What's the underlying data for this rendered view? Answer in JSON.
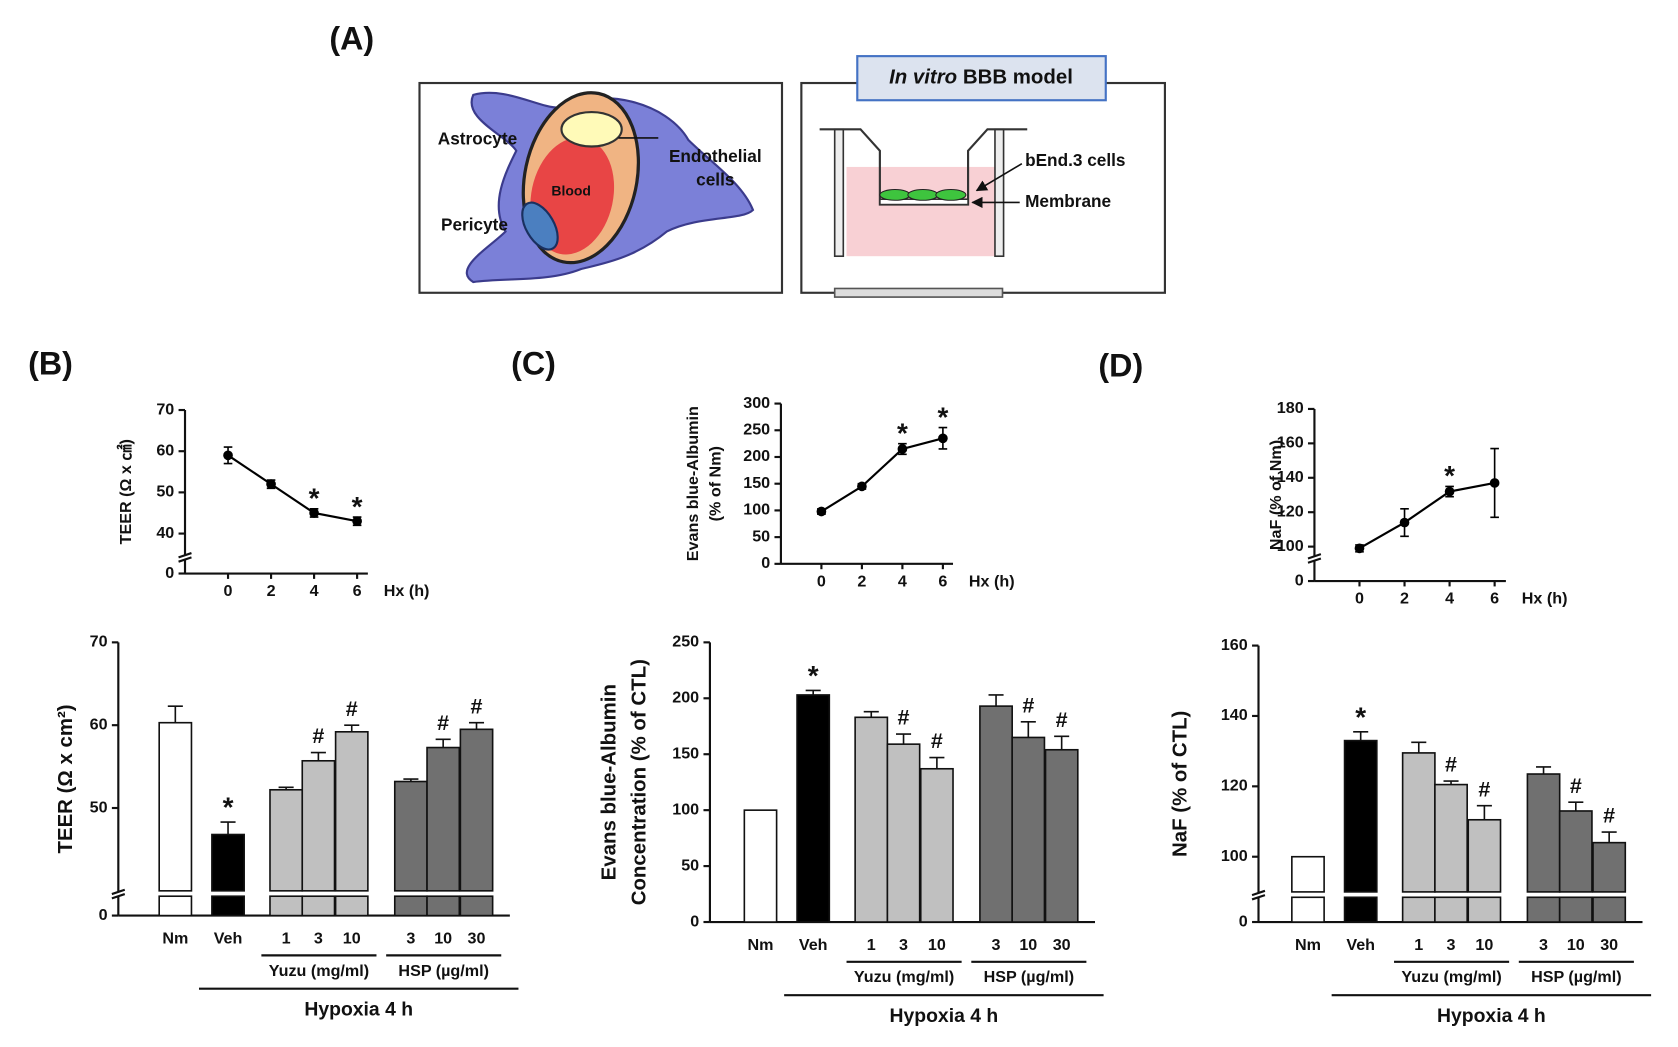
{
  "panel_labels": [
    "(A)",
    "(B)",
    "(C)",
    "(D)"
  ],
  "diagram": {
    "title_italic": "In vitro",
    "title_rest": "BBB model",
    "left_labels": {
      "astrocyte": "Astrocyte",
      "endothelial": [
        "Endothelial",
        "cells"
      ],
      "blood": "Blood",
      "pericyte": "Pericyte"
    },
    "right_labels": {
      "cells": "bEnd.3 cells",
      "membrane": "Membrane"
    }
  },
  "chart_data": [
    {
      "type": "line",
      "ylabel": [
        "TEER (Ω x ㎠)"
      ],
      "xlabel": "Hx (h)",
      "x": [
        0,
        2,
        4,
        6
      ],
      "values": [
        59,
        52,
        45,
        43
      ],
      "errors": [
        2,
        1,
        1,
        1
      ],
      "annotations": [
        null,
        null,
        "*",
        "*"
      ],
      "color": "#000000",
      "xlim": [
        -2,
        6.5
      ],
      "xticks": [
        0,
        2,
        4,
        6
      ],
      "ylim": [
        0,
        70
      ],
      "yticks": [
        0,
        40,
        50,
        60,
        70
      ],
      "axis_break": [
        0,
        35
      ]
    },
    {
      "type": "bar",
      "ylabel": [
        "TEER (Ω x cm²)"
      ],
      "categories": [
        "Nm",
        "Veh",
        "1",
        "3",
        "10",
        "3",
        "10",
        "30"
      ],
      "values": [
        60.3,
        46.8,
        52.2,
        55.7,
        59.2,
        53.2,
        57.3,
        59.5
      ],
      "errors": [
        2,
        1.5,
        0.3,
        1,
        0.8,
        0.3,
        1,
        0.8
      ],
      "annotations": [
        null,
        "*",
        null,
        "#",
        "#",
        null,
        "#",
        "#"
      ],
      "colors": [
        "#ffffff",
        "#000000",
        "#c0c0c0",
        "#c0c0c0",
        "#c0c0c0",
        "#707070",
        "#707070",
        "#707070"
      ],
      "groups": [
        {
          "label": "Yuzu (mg/ml)",
          "members": [
            2,
            3,
            4
          ]
        },
        {
          "label": "HSP (µg/ml)",
          "members": [
            5,
            6,
            7
          ]
        }
      ],
      "bracket_label": "Hypoxia 4 h",
      "ylim": [
        0,
        70
      ],
      "yticks": [
        0,
        50,
        60,
        70
      ],
      "axis_break": [
        0,
        40
      ]
    },
    {
      "type": "line",
      "ylabel": [
        "Evans blue-Albumin",
        "(% of Nm)"
      ],
      "xlabel": "Hx (h)",
      "x": [
        0,
        2,
        4,
        6
      ],
      "values": [
        98,
        145,
        215,
        235
      ],
      "errors": [
        5,
        5,
        10,
        20
      ],
      "annotations": [
        null,
        null,
        "*",
        "*"
      ],
      "color": "#000000",
      "xlim": [
        -2,
        6.5
      ],
      "xticks": [
        0,
        2,
        4,
        6
      ],
      "ylim": [
        0,
        300
      ],
      "yticks": [
        0,
        50,
        100,
        150,
        200,
        250,
        300
      ]
    },
    {
      "type": "bar",
      "ylabel": [
        "Evans blue-Albumin",
        "Concentration (% of CTL)"
      ],
      "categories": [
        "Nm",
        "Veh",
        "1",
        "3",
        "10",
        "3",
        "10",
        "30"
      ],
      "values": [
        100,
        203,
        183,
        159,
        137,
        193,
        165,
        154
      ],
      "errors": [
        null,
        4,
        5,
        9,
        10,
        10,
        14,
        12
      ],
      "annotations": [
        null,
        "*",
        null,
        "#",
        "#",
        null,
        "#",
        "#"
      ],
      "colors": [
        "#ffffff",
        "#000000",
        "#c0c0c0",
        "#c0c0c0",
        "#c0c0c0",
        "#707070",
        "#707070",
        "#707070"
      ],
      "groups": [
        {
          "label": "Yuzu (mg/ml)",
          "members": [
            2,
            3,
            4
          ]
        },
        {
          "label": "HSP (µg/ml)",
          "members": [
            5,
            6,
            7
          ]
        }
      ],
      "bracket_label": "Hypoxia 4 h",
      "ylim": [
        0,
        250
      ],
      "yticks": [
        0,
        50,
        100,
        150,
        200,
        250
      ]
    },
    {
      "type": "line",
      "ylabel": [
        "NaF  (% of Nm)"
      ],
      "xlabel": "Hx (h)",
      "x": [
        0,
        2,
        4,
        6
      ],
      "values": [
        99,
        114,
        132,
        137
      ],
      "errors": [
        2,
        8,
        3,
        20
      ],
      "annotations": [
        null,
        null,
        "*",
        null
      ],
      "color": "#000000",
      "xlim": [
        -2,
        6.5
      ],
      "xticks": [
        0,
        2,
        4,
        6
      ],
      "ylim": [
        0,
        180
      ],
      "yticks": [
        0,
        100,
        120,
        140,
        160,
        180
      ],
      "axis_break": [
        0,
        95
      ]
    },
    {
      "type": "bar",
      "ylabel": [
        "NaF (% of CTL)"
      ],
      "categories": [
        "Nm",
        "Veh",
        "1",
        "3",
        "10",
        "3",
        "10",
        "30"
      ],
      "values": [
        100,
        133,
        129.5,
        120.5,
        110.5,
        123.5,
        113,
        104
      ],
      "errors": [
        null,
        2.5,
        3,
        1,
        4,
        2,
        2.5,
        3
      ],
      "annotations": [
        null,
        "*",
        null,
        "#",
        "#",
        null,
        "#",
        "#"
      ],
      "colors": [
        "#ffffff",
        "#000000",
        "#c0c0c0",
        "#c0c0c0",
        "#c0c0c0",
        "#707070",
        "#707070",
        "#707070"
      ],
      "groups": [
        {
          "label": "Yuzu (mg/ml)",
          "members": [
            2,
            3,
            4
          ]
        },
        {
          "label": "HSP (µg/ml)",
          "members": [
            5,
            6,
            7
          ]
        }
      ],
      "bracket_label": "Hypoxia 4 h",
      "ylim": [
        0,
        160
      ],
      "yticks": [
        0,
        100,
        120,
        140,
        160
      ],
      "axis_break": [
        0,
        90
      ]
    }
  ]
}
